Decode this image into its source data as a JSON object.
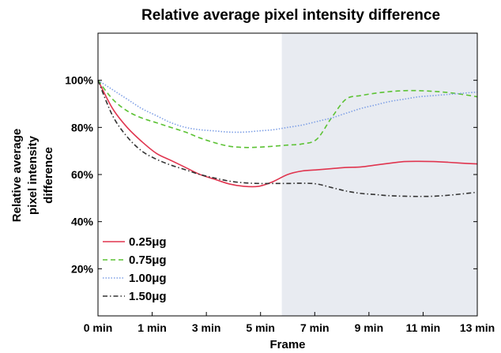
{
  "chart_data": {
    "type": "line",
    "title": "Relative average pixel intensity difference",
    "xlabel": "Frame",
    "ylabel_lines": [
      "Relative average",
      "pixel intensity",
      "difference"
    ],
    "x_tick_labels": [
      "0 min",
      "1 min",
      "3 min",
      "5 min",
      "7 min",
      "9 min",
      "11 min",
      "13 min"
    ],
    "y_ticks": [
      0.2,
      0.4,
      0.6,
      0.8,
      1.0
    ],
    "y_tick_labels": [
      "20%",
      "40%",
      "60%",
      "80%",
      "100%"
    ],
    "xlim": [
      0,
      13
    ],
    "ylim": [
      0,
      1.2
    ],
    "shaded_region": [
      6.3,
      13
    ],
    "shaded_color": "#e8ebf1",
    "legend_position": "bottom-left",
    "grid": false,
    "series": [
      {
        "name": "0.25μg",
        "color": "#e0354f",
        "dash": "solid",
        "x": [
          0,
          0.5,
          1,
          1.5,
          2,
          2.5,
          3,
          3.5,
          4,
          4.5,
          5,
          5.5,
          6,
          6.5,
          7,
          7.5,
          8,
          8.5,
          9,
          9.5,
          10,
          10.5,
          11,
          11.5,
          12,
          12.5,
          13
        ],
        "y": [
          1.0,
          0.88,
          0.8,
          0.74,
          0.69,
          0.66,
          0.63,
          0.6,
          0.58,
          0.56,
          0.55,
          0.55,
          0.57,
          0.6,
          0.615,
          0.62,
          0.625,
          0.63,
          0.632,
          0.64,
          0.648,
          0.655,
          0.656,
          0.655,
          0.652,
          0.648,
          0.645
        ]
      },
      {
        "name": "0.75μg",
        "color": "#5cc234",
        "dash": "dashed",
        "x": [
          0,
          0.5,
          1,
          1.5,
          2,
          2.5,
          3,
          3.5,
          4,
          4.5,
          5,
          5.5,
          6,
          6.5,
          7,
          7.5,
          8,
          8.5,
          9,
          9.5,
          10,
          10.5,
          11,
          11.5,
          12,
          12.5,
          13
        ],
        "y": [
          1.0,
          0.92,
          0.87,
          0.84,
          0.82,
          0.8,
          0.78,
          0.755,
          0.735,
          0.72,
          0.715,
          0.716,
          0.72,
          0.725,
          0.73,
          0.75,
          0.84,
          0.92,
          0.935,
          0.945,
          0.952,
          0.956,
          0.956,
          0.953,
          0.948,
          0.94,
          0.93
        ]
      },
      {
        "name": "1.00μg",
        "color": "#7fa0e6",
        "dash": "dotted",
        "x": [
          0,
          0.5,
          1,
          1.5,
          2,
          2.5,
          3,
          3.5,
          4,
          4.5,
          5,
          5.5,
          6,
          6.5,
          7,
          7.5,
          8,
          8.5,
          9,
          9.5,
          10,
          10.5,
          11,
          11.5,
          12,
          12.5,
          13
        ],
        "y": [
          1.0,
          0.96,
          0.92,
          0.88,
          0.85,
          0.82,
          0.8,
          0.79,
          0.785,
          0.78,
          0.78,
          0.785,
          0.79,
          0.8,
          0.81,
          0.825,
          0.84,
          0.86,
          0.88,
          0.895,
          0.91,
          0.92,
          0.93,
          0.935,
          0.94,
          0.945,
          0.95
        ]
      },
      {
        "name": "1.50μg",
        "color": "#333333",
        "dash": "dashdot",
        "x": [
          0,
          0.5,
          1,
          1.5,
          2,
          2.5,
          3,
          3.5,
          4,
          4.5,
          5,
          5.5,
          6,
          6.5,
          7,
          7.5,
          8,
          8.5,
          9,
          9.5,
          10,
          10.5,
          11,
          11.5,
          12,
          12.5,
          13
        ],
        "y": [
          1.0,
          0.85,
          0.76,
          0.7,
          0.665,
          0.64,
          0.62,
          0.6,
          0.585,
          0.572,
          0.565,
          0.562,
          0.562,
          0.562,
          0.563,
          0.56,
          0.545,
          0.53,
          0.52,
          0.515,
          0.51,
          0.508,
          0.507,
          0.508,
          0.512,
          0.518,
          0.525
        ]
      }
    ]
  }
}
